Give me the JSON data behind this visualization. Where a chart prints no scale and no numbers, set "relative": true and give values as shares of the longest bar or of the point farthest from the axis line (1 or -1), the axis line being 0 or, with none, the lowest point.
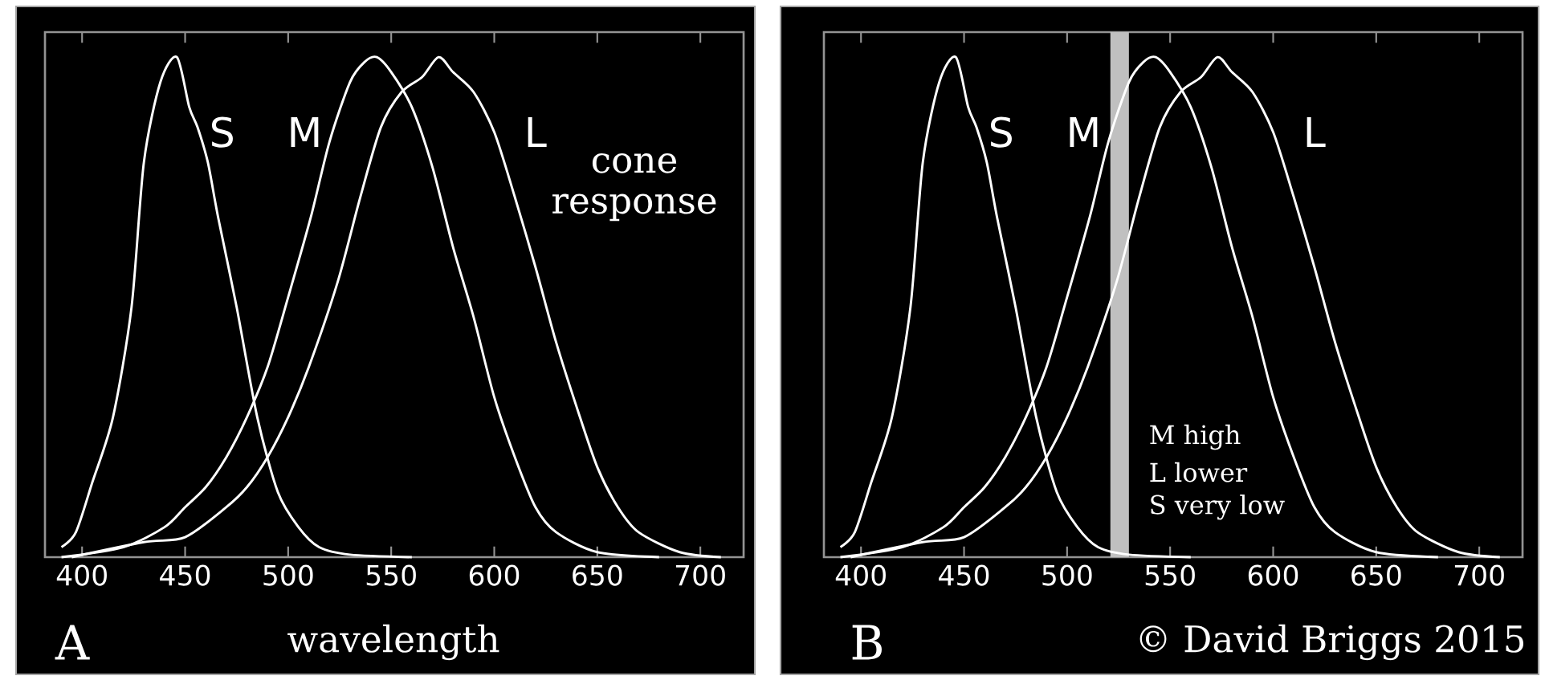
{
  "chart_data": [
    {
      "type": "line",
      "relative": true,
      "xlabel": "wavelength",
      "xlim": [
        382,
        721
      ],
      "xticks": [
        400,
        450,
        500,
        550,
        600,
        650,
        700
      ],
      "grid": false,
      "annotations": [
        "A",
        "cone response"
      ],
      "series": [
        {
          "name": "S",
          "color": "#ffffff",
          "x": [
            390,
            397,
            405,
            415,
            424,
            430,
            438,
            446,
            452,
            456,
            461,
            466,
            475,
            485,
            495,
            505,
            515,
            530,
            560
          ],
          "values": [
            0.02,
            0.05,
            0.15,
            0.28,
            0.5,
            0.79,
            0.95,
            1.0,
            0.9,
            0.86,
            0.79,
            0.68,
            0.5,
            0.28,
            0.13,
            0.06,
            0.02,
            0.005,
            0
          ]
        },
        {
          "name": "M",
          "color": "#ffffff",
          "x": [
            390,
            420,
            440,
            450,
            460,
            470,
            480,
            490,
            500,
            511,
            520,
            530,
            537,
            543,
            550,
            560,
            570,
            580,
            590,
            600,
            610,
            620,
            630,
            650,
            680
          ],
          "values": [
            0,
            0.02,
            0.06,
            0.1,
            0.14,
            0.2,
            0.28,
            0.38,
            0.52,
            0.68,
            0.83,
            0.95,
            0.99,
            1.0,
            0.97,
            0.9,
            0.78,
            0.62,
            0.48,
            0.32,
            0.2,
            0.1,
            0.05,
            0.01,
            0
          ]
        },
        {
          "name": "L",
          "color": "#ffffff",
          "x": [
            395,
            430,
            450,
            470,
            480,
            490,
            500,
            510,
            524,
            535,
            545,
            555,
            565,
            573,
            580,
            590,
            600,
            610,
            620,
            630,
            640,
            650,
            660,
            670,
            690,
            710
          ],
          "values": [
            0,
            0.03,
            0.04,
            0.1,
            0.14,
            0.2,
            0.28,
            0.38,
            0.55,
            0.72,
            0.86,
            0.93,
            0.96,
            1.0,
            0.97,
            0.93,
            0.85,
            0.72,
            0.58,
            0.43,
            0.3,
            0.18,
            0.1,
            0.05,
            0.01,
            0
          ]
        }
      ]
    },
    {
      "type": "line",
      "relative": true,
      "xlim": [
        382,
        721
      ],
      "xticks": [
        400,
        450,
        500,
        550,
        600,
        650,
        700
      ],
      "grid": false,
      "annotations": [
        "B",
        "M high",
        "L lower",
        "S very low",
        "© David Briggs 2015"
      ],
      "bands": [
        {
          "axis": "x",
          "from": 521,
          "to": 530,
          "color": "#c0c0c0"
        }
      ],
      "series": [
        {
          "name": "S",
          "color": "#ffffff",
          "x": [
            390,
            397,
            405,
            415,
            424,
            430,
            438,
            446,
            452,
            456,
            461,
            466,
            475,
            485,
            495,
            505,
            515,
            530,
            560
          ],
          "values": [
            0.02,
            0.05,
            0.15,
            0.28,
            0.5,
            0.79,
            0.95,
            1.0,
            0.9,
            0.86,
            0.79,
            0.68,
            0.5,
            0.28,
            0.13,
            0.06,
            0.02,
            0.005,
            0
          ]
        },
        {
          "name": "M",
          "color": "#ffffff",
          "x": [
            390,
            420,
            440,
            450,
            460,
            470,
            480,
            490,
            500,
            511,
            520,
            530,
            537,
            543,
            550,
            560,
            570,
            580,
            590,
            600,
            610,
            620,
            630,
            650,
            680
          ],
          "values": [
            0,
            0.02,
            0.06,
            0.1,
            0.14,
            0.2,
            0.28,
            0.38,
            0.52,
            0.68,
            0.83,
            0.95,
            0.99,
            1.0,
            0.97,
            0.9,
            0.78,
            0.62,
            0.48,
            0.32,
            0.2,
            0.1,
            0.05,
            0.01,
            0
          ]
        },
        {
          "name": "L",
          "color": "#ffffff",
          "x": [
            395,
            430,
            450,
            470,
            480,
            490,
            500,
            510,
            524,
            535,
            545,
            555,
            565,
            573,
            580,
            590,
            600,
            610,
            620,
            630,
            640,
            650,
            660,
            670,
            690,
            710
          ],
          "values": [
            0,
            0.03,
            0.04,
            0.1,
            0.14,
            0.2,
            0.28,
            0.38,
            0.55,
            0.72,
            0.86,
            0.93,
            0.96,
            1.0,
            0.97,
            0.93,
            0.85,
            0.72,
            0.58,
            0.43,
            0.3,
            0.18,
            0.1,
            0.05,
            0.01,
            0
          ]
        }
      ]
    }
  ]
}
